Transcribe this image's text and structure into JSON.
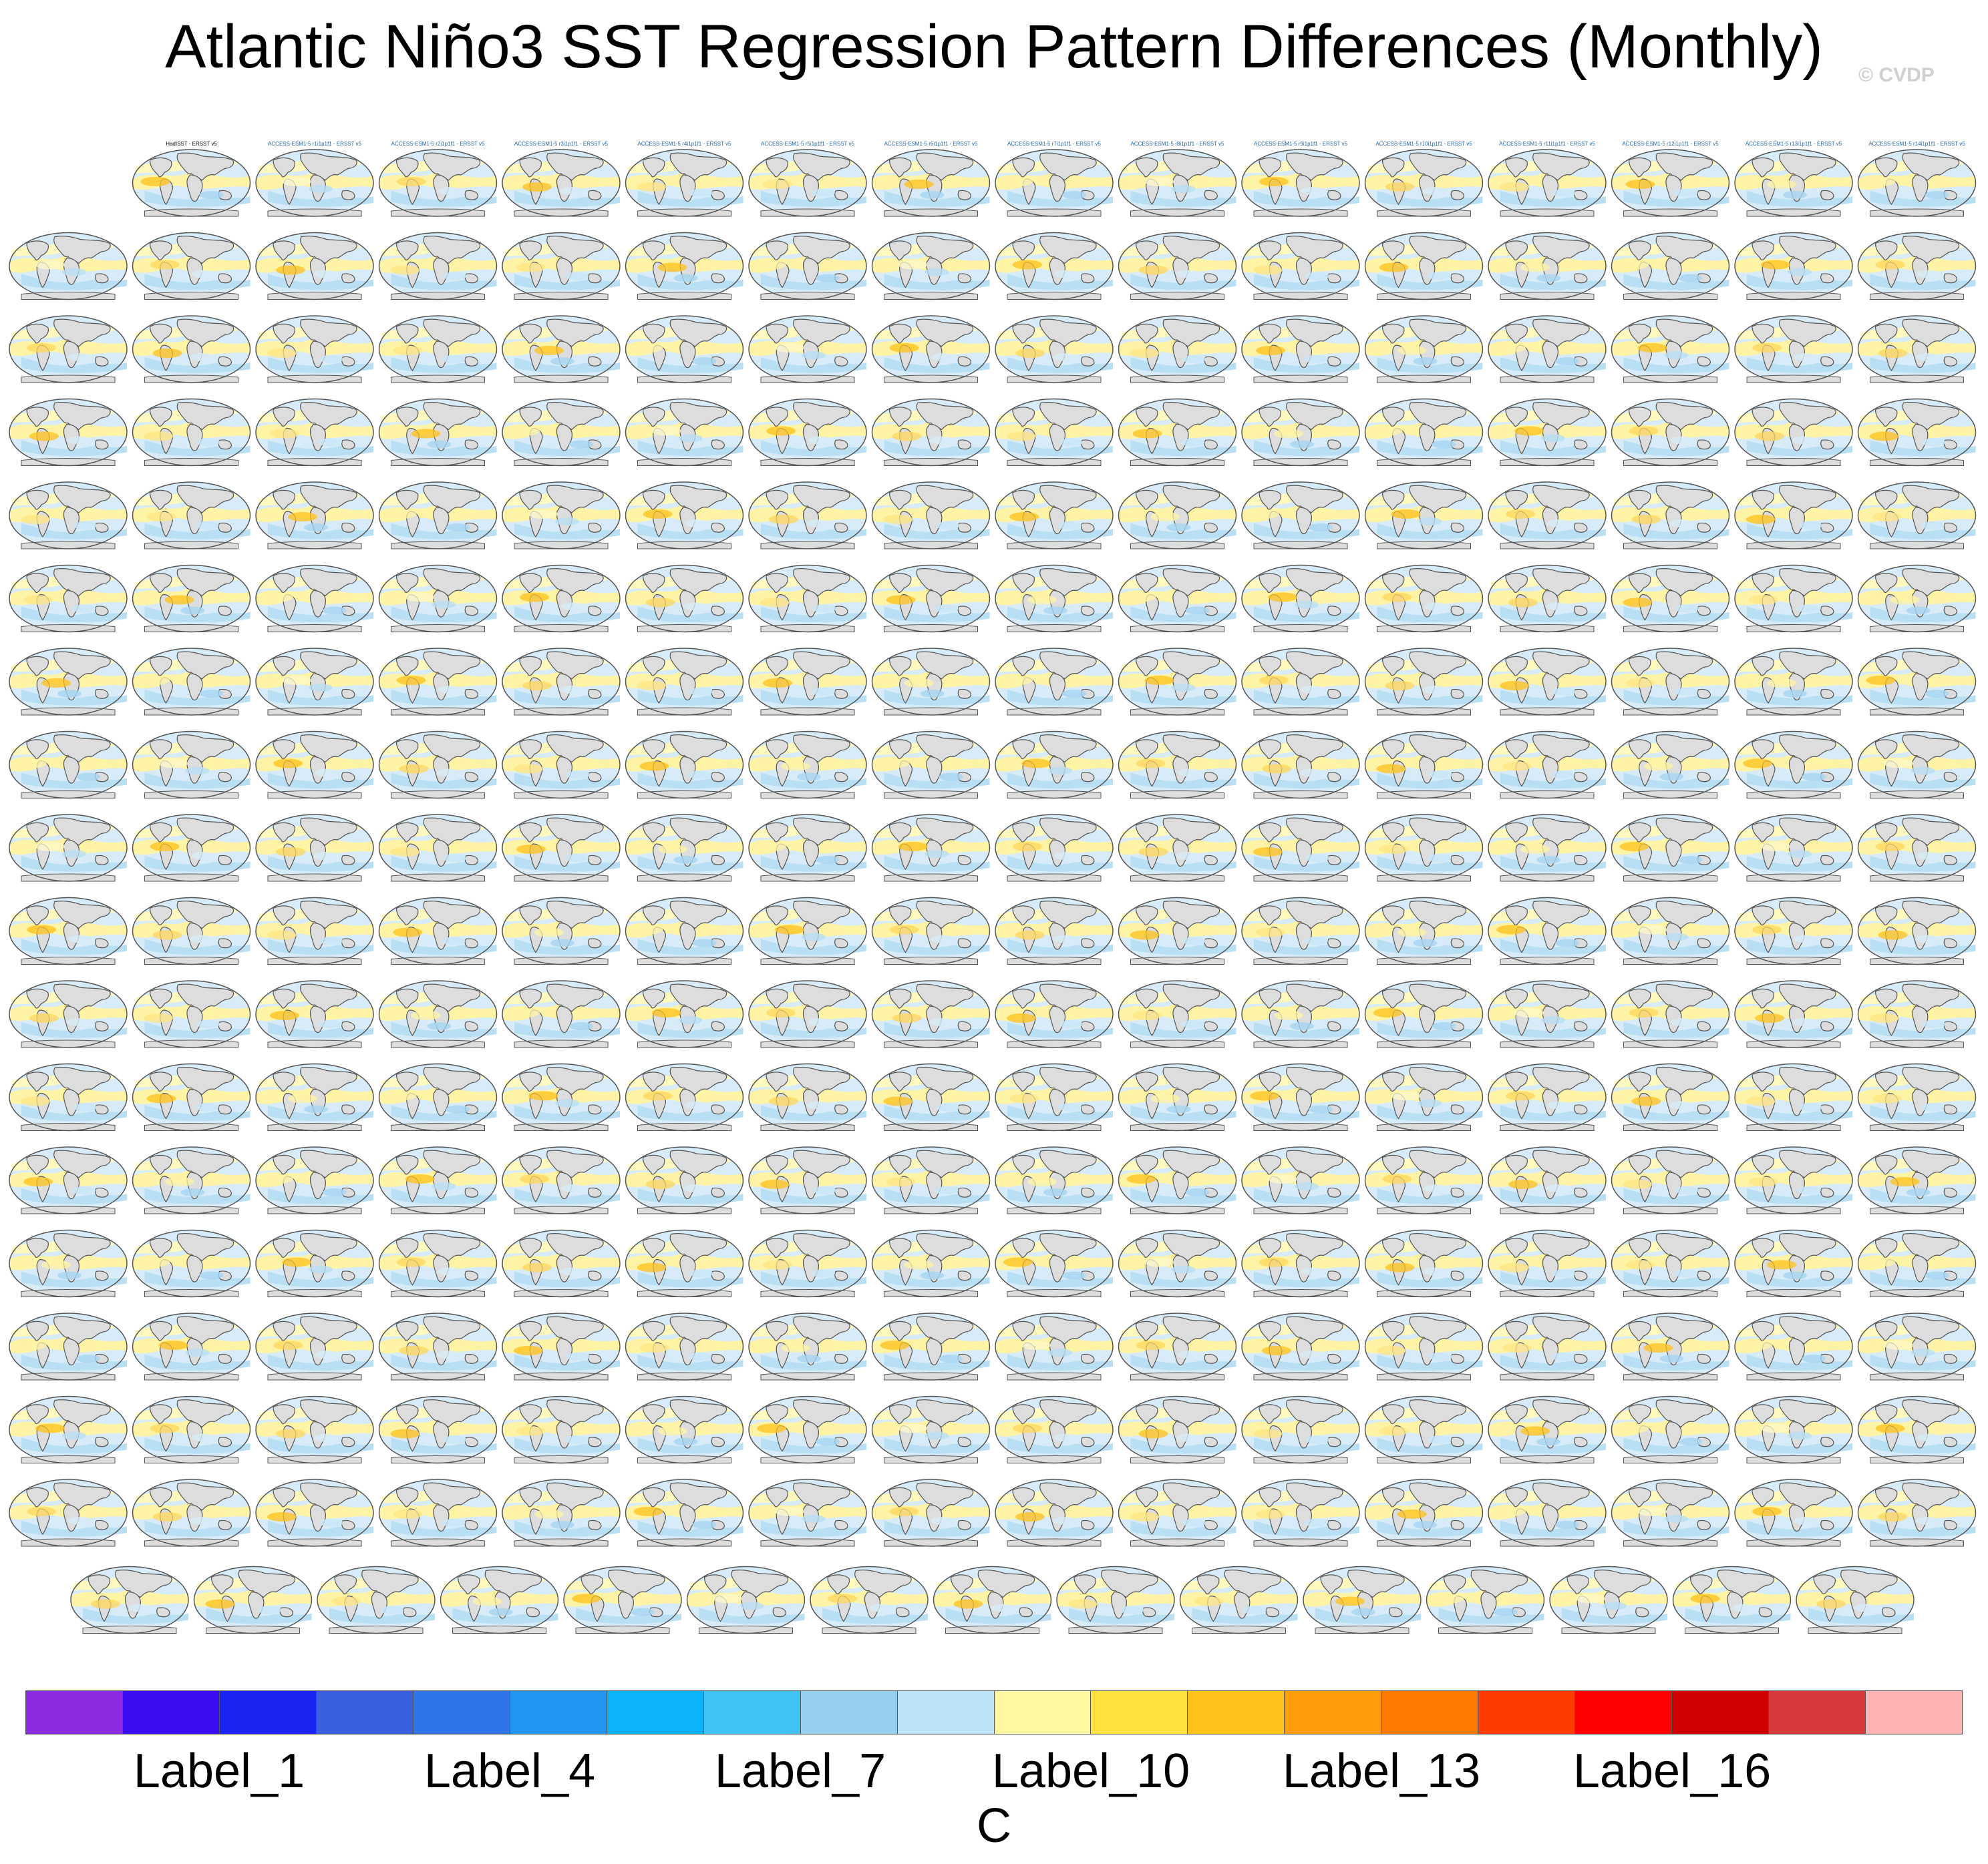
{
  "title": "Atlantic Niño3 SST Regression Pattern Differences (Monthly)",
  "watermark": "© CVDP",
  "grid": {
    "rows": 18,
    "columns": 16,
    "last_row_panels": 15,
    "first_row_panels": 15
  },
  "panels": [
    {
      "label": "HadISST - ERSST v5"
    },
    {
      "label": "ACCESS-ESM1-5 r1i1p1f1 - ERSST v5"
    },
    {
      "label": "ACCESS-ESM1-5 r2i1p1f1 - ERSST v5"
    },
    {
      "label": "ACCESS-ESM1-5 r3i1p1f1 - ERSST v5"
    },
    {
      "label": "ACCESS-ESM1-5 r4i1p1f1 - ERSST v5"
    },
    {
      "label": "ACCESS-ESM1-5 r5i1p1f1 - ERSST v5"
    },
    {
      "label": "ACCESS-ESM1-5 r6i1p1f1 - ERSST v5"
    },
    {
      "label": "ACCESS-ESM1-5 r7i1p1f1 - ERSST v5"
    },
    {
      "label": "ACCESS-ESM1-5 r8i1p1f1 - ERSST v5"
    },
    {
      "label": "ACCESS-ESM1-5 r9i1p1f1 - ERSST v5"
    },
    {
      "label": "ACCESS-ESM1-5 r10i1p1f1 - ERSST v5"
    },
    {
      "label": "ACCESS-ESM1-5 r11i1p1f1 - ERSST v5"
    },
    {
      "label": "ACCESS-ESM1-5 r12i1p1f1 - ERSST v5"
    },
    {
      "label": "ACCESS-ESM1-5 r13i1p1f1 - ERSST v5"
    },
    {
      "label": "ACCESS-ESM1-5 r14i1p1f1 - ERSST v5"
    }
  ],
  "colorbar": {
    "colors": [
      "#8a2be2",
      "#3a0df2",
      "#1a25f2",
      "#3a5ee0",
      "#2f74e8",
      "#2196f3",
      "#0bb3fa",
      "#3fc3f5",
      "#95d0ef",
      "#bde3f6",
      "#fff7a0",
      "#ffe23d",
      "#ffc21a",
      "#ff9e0a",
      "#ff7a00",
      "#ff3c00",
      "#ff0000",
      "#d00000",
      "#d63a3a",
      "#ffb3b3"
    ],
    "labels": [
      {
        "text": "Label_1",
        "index": 1
      },
      {
        "text": "Label_4",
        "index": 4
      },
      {
        "text": "Label_7",
        "index": 7
      },
      {
        "text": "Label_10",
        "index": 10
      },
      {
        "text": "Label_13",
        "index": 13
      },
      {
        "text": "Label_16",
        "index": 16
      }
    ],
    "units": "C"
  }
}
